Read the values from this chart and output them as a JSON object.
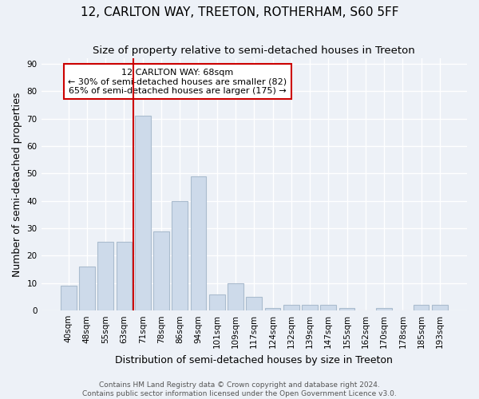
{
  "title": "12, CARLTON WAY, TREETON, ROTHERHAM, S60 5FF",
  "subtitle": "Size of property relative to semi-detached houses in Treeton",
  "xlabel": "Distribution of semi-detached houses by size in Treeton",
  "ylabel": "Number of semi-detached properties",
  "categories": [
    "40sqm",
    "48sqm",
    "55sqm",
    "63sqm",
    "71sqm",
    "78sqm",
    "86sqm",
    "94sqm",
    "101sqm",
    "109sqm",
    "117sqm",
    "124sqm",
    "132sqm",
    "139sqm",
    "147sqm",
    "155sqm",
    "162sqm",
    "170sqm",
    "178sqm",
    "185sqm",
    "193sqm"
  ],
  "values": [
    9,
    16,
    25,
    25,
    71,
    29,
    40,
    49,
    6,
    10,
    5,
    1,
    2,
    2,
    2,
    1,
    0,
    1,
    0,
    2,
    2
  ],
  "bar_color": "#cddaea",
  "bar_edge_color": "#aabcce",
  "red_line_x": 3.5,
  "annotation_title": "12 CARLTON WAY: 68sqm",
  "annotation_line1": "← 30% of semi-detached houses are smaller (82)",
  "annotation_line2": "65% of semi-detached houses are larger (175) →",
  "annotation_box_color": "#ffffff",
  "annotation_border_color": "#cc0000",
  "ylim": [
    0,
    92
  ],
  "yticks": [
    0,
    10,
    20,
    30,
    40,
    50,
    60,
    70,
    80,
    90
  ],
  "footer_line1": "Contains HM Land Registry data © Crown copyright and database right 2024.",
  "footer_line2": "Contains public sector information licensed under the Open Government Licence v3.0.",
  "background_color": "#edf1f7",
  "plot_bg_color": "#edf1f7",
  "grid_color": "#ffffff",
  "title_fontsize": 11,
  "subtitle_fontsize": 9.5,
  "axis_label_fontsize": 9,
  "tick_fontsize": 7.5,
  "annotation_fontsize": 8,
  "footer_fontsize": 6.5
}
